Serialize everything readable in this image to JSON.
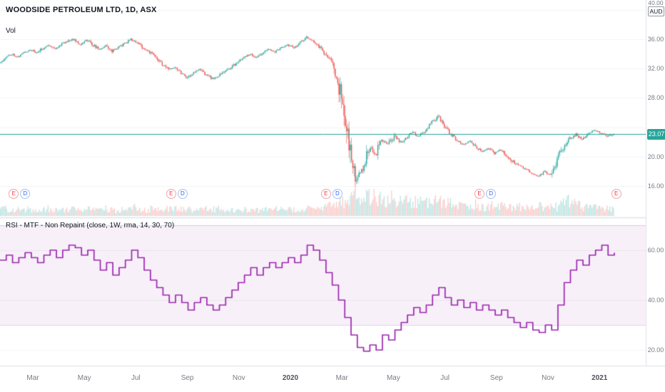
{
  "legend": {
    "symbol_title": "WOODSIDE PETROLEUM LTD, 1D, ASX",
    "volume_label": "Vol"
  },
  "indicator_legend": "RSI - MTF - Non Repaint (close, 1W, rma, 14, 30, 70)",
  "price_axis": {
    "currency": "AUD",
    "top_label": "40.00",
    "labels": [
      {
        "text": "36.00",
        "value": 36
      },
      {
        "text": "32.00",
        "value": 32
      },
      {
        "text": "28.00",
        "value": 28
      },
      {
        "text": "20.00",
        "value": 20
      },
      {
        "text": "16.00",
        "value": 16
      }
    ],
    "current_price_label": "23.07"
  },
  "rsi_axis": {
    "labels": [
      {
        "text": "60.00",
        "value": 60
      },
      {
        "text": "40.00",
        "value": 40
      },
      {
        "text": "20.00",
        "value": 20
      }
    ]
  },
  "time_axis": {
    "labels": [
      {
        "text": "Mar",
        "m": 0
      },
      {
        "text": "May",
        "m": 2
      },
      {
        "text": "Jul",
        "m": 4
      },
      {
        "text": "Sep",
        "m": 6
      },
      {
        "text": "Nov",
        "m": 8
      },
      {
        "text": "2020",
        "m": 10,
        "year": true
      },
      {
        "text": "Mar",
        "m": 12
      },
      {
        "text": "May",
        "m": 14
      },
      {
        "text": "Jul",
        "m": 16
      },
      {
        "text": "Sep",
        "m": 18
      },
      {
        "text": "Nov",
        "m": 20
      },
      {
        "text": "2021",
        "m": 22,
        "year": true
      }
    ]
  },
  "events": [
    {
      "week": 2.2,
      "badges": [
        "E",
        "D"
      ]
    },
    {
      "week": 27.3,
      "badges": [
        "E",
        "D"
      ]
    },
    {
      "week": 52.0,
      "badges": [
        "E",
        "D"
      ]
    },
    {
      "week": 76.5,
      "badges": [
        "E",
        "D"
      ]
    },
    {
      "week": 98.3,
      "badges": [
        "E"
      ]
    }
  ],
  "colors": {
    "up": "#26a69a",
    "down": "#ef5350",
    "vol_up": "rgba(38,166,154,0.32)",
    "vol_down": "rgba(239,83,80,0.32)",
    "price_line": "#26a69a",
    "tag_bg": "#26a69a",
    "rsi_line": "#9c27b0",
    "band_fill": "rgba(156,39,176,0.07)",
    "band_edge": "rgba(126,87,194,0.25)",
    "grid": "rgba(42,46,57,0.06)",
    "separator": "#e0e3eb",
    "axis_text": "#787b86",
    "earnings": "#f23645",
    "dividend": "#2962ff"
  },
  "chart_data": {
    "type": "candlestick",
    "title": "WOODSIDE PETROLEUM LTD, 1D, ASX",
    "currency": "AUD",
    "x_range": [
      "Jan 2019",
      "Jan 2021"
    ],
    "price_axis_ticks": [
      40,
      36,
      32,
      28,
      24,
      20,
      16
    ],
    "last_price": 23.07,
    "weekly_close": [
      32.8,
      33.5,
      34.0,
      33.6,
      34.2,
      34.6,
      34.1,
      34.8,
      35.2,
      34.7,
      35.4,
      35.8,
      36.0,
      35.3,
      35.9,
      35.2,
      34.6,
      35.1,
      34.4,
      34.9,
      35.4,
      36.0,
      35.5,
      34.8,
      34.2,
      33.5,
      32.6,
      31.8,
      32.3,
      31.5,
      30.8,
      31.4,
      31.9,
      31.2,
      30.6,
      31.0,
      31.6,
      32.2,
      32.8,
      33.4,
      34.0,
      33.5,
      34.2,
      34.6,
      34.3,
      34.8,
      35.2,
      34.9,
      35.5,
      36.2,
      35.8,
      35.0,
      34.0,
      33.0,
      30.5,
      26.0,
      20.5,
      16.8,
      18.5,
      21.5,
      20.3,
      22.4,
      21.6,
      22.8,
      21.9,
      22.6,
      23.3,
      22.7,
      23.6,
      24.6,
      25.4,
      24.2,
      23.1,
      22.3,
      21.7,
      22.1,
      21.3,
      20.7,
      21.1,
      20.5,
      20.9,
      20.1,
      19.3,
      18.7,
      18.3,
      17.7,
      17.3,
      17.9,
      17.5,
      19.5,
      21.4,
      22.4,
      23.0,
      22.4,
      23.2,
      23.6,
      23.2,
      22.8,
      23.07
    ],
    "weekly_volume_rel": [
      0.3,
      0.22,
      0.26,
      0.2,
      0.28,
      0.24,
      0.21,
      0.3,
      0.26,
      0.23,
      0.28,
      0.33,
      0.25,
      0.22,
      0.27,
      0.24,
      0.3,
      0.26,
      0.22,
      0.25,
      0.28,
      0.35,
      0.27,
      0.24,
      0.3,
      0.28,
      0.33,
      0.36,
      0.28,
      0.3,
      0.26,
      0.24,
      0.28,
      0.25,
      0.3,
      0.26,
      0.24,
      0.27,
      0.25,
      0.28,
      0.26,
      0.23,
      0.27,
      0.25,
      0.28,
      0.24,
      0.26,
      0.22,
      0.3,
      0.34,
      0.3,
      0.36,
      0.4,
      0.46,
      0.6,
      0.85,
      1.0,
      0.95,
      0.9,
      0.75,
      0.7,
      0.65,
      0.72,
      0.6,
      0.66,
      0.58,
      0.62,
      0.55,
      0.6,
      0.65,
      0.58,
      0.52,
      0.48,
      0.45,
      0.42,
      0.46,
      0.4,
      0.38,
      0.42,
      0.38,
      0.4,
      0.36,
      0.38,
      0.35,
      0.38,
      0.36,
      0.4,
      0.35,
      0.38,
      0.55,
      0.6,
      0.5,
      0.42,
      0.38,
      0.36,
      0.34,
      0.32,
      0.3,
      0.28
    ],
    "rsi": {
      "name": "RSI - MTF - Non Repaint (close, 1W, rma, 14, 30, 70)",
      "band": [
        30,
        70
      ],
      "axis_ticks": [
        60,
        40,
        20
      ],
      "weekly_values": [
        56,
        58,
        55,
        57,
        59,
        57,
        55,
        58,
        60,
        57,
        60,
        62,
        61,
        58,
        60,
        56,
        52,
        55,
        50,
        53,
        56,
        60,
        57,
        52,
        48,
        45,
        42,
        39,
        42,
        39,
        36,
        39,
        41,
        38,
        36,
        38,
        41,
        44,
        47,
        50,
        53,
        50,
        53,
        55,
        53,
        55,
        57,
        55,
        58,
        62,
        60,
        56,
        51,
        46,
        40,
        33,
        26,
        21,
        19.5,
        22,
        20,
        26,
        24,
        28,
        31,
        34,
        37,
        35,
        38,
        42,
        45,
        41,
        38,
        40,
        37,
        39,
        36,
        38,
        36,
        34,
        36,
        33,
        31,
        29,
        31,
        28,
        27,
        30,
        28,
        38,
        47,
        52,
        56,
        54,
        58,
        60,
        62,
        58,
        59
      ]
    },
    "seed": 11
  }
}
